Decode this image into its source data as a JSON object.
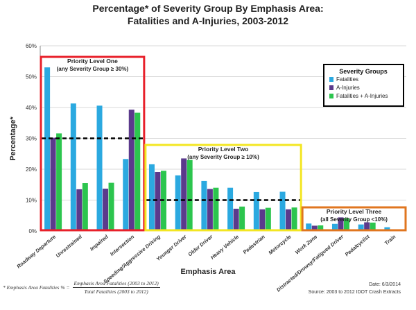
{
  "title_line1": "Percentage* of Severity Group By Emphasis Area:",
  "title_line2": "Fatalities and A-Injuries, 2003-2012",
  "footer": {
    "formula_lhs": "* Emphasis Area Fatalities % =",
    "formula_num": "Emphasis Area Fatalities (2003 to 2012)",
    "formula_den": "Total Fatalities (2003 to 2012)",
    "date": "Date: 6/3/2014",
    "source": "Source:  2003 to 2012 IDOT Crash Extracts"
  },
  "priority_boxes": [
    {
      "title": "Priority Level One",
      "subtitle": "(any Severity Group ≥ 30%)",
      "color": "#e8202a"
    },
    {
      "title": "Priority Level Two",
      "subtitle": "(any Severity Group ≥ 10%)",
      "color": "#f3e622"
    },
    {
      "title": "Priority Level Three",
      "subtitle": "(all Severity Group <10%)",
      "color": "#e0761f"
    }
  ],
  "legend_title": "Severity Groups",
  "chart_data": {
    "type": "bar",
    "xlabel": "Emphasis Area",
    "ylabel": "Percentage*",
    "ylim": [
      0,
      60
    ],
    "yticks": [
      "0%",
      "10%",
      "20%",
      "30%",
      "40%",
      "50%",
      "60%"
    ],
    "grid": true,
    "legend": "top-right",
    "categories": [
      "Roadway Departure",
      "Unrestrained",
      "Impaired",
      "Intersection",
      "Speeding/Aggressive Driving",
      "Younger Driver",
      "Older Driver",
      "Heavy Vehicle",
      "Pedestrian",
      "Motorcycle",
      "Work Zone",
      "Distracted/Drowsy/Fatigued Driver",
      "Pedalcyclist",
      "Train"
    ],
    "series": [
      {
        "name": "Fatalities",
        "color": "#2ba9e0",
        "values": [
          53,
          41.3,
          40.6,
          23.3,
          21.6,
          18,
          16.2,
          14,
          12.6,
          12.7,
          2.4,
          2.3,
          2.1,
          1.2
        ]
      },
      {
        "name": "A-Injuries",
        "color": "#5b3a8c",
        "values": [
          30.2,
          13.5,
          13.7,
          39.3,
          19.1,
          23.5,
          13.6,
          7.2,
          7,
          7,
          1.7,
          4.4,
          2.8,
          0.4
        ]
      },
      {
        "name": "Fatalities + A-Injuries",
        "color": "#2cc54e",
        "values": [
          31.6,
          15.5,
          15.6,
          38.3,
          19.5,
          23,
          14,
          7.9,
          7.5,
          7.6,
          1.8,
          4.2,
          2.7,
          0.5
        ]
      }
    ],
    "thresholds": [
      {
        "value": 30,
        "from_category": 0,
        "to_category": 3
      },
      {
        "value": 10,
        "from_category": 4,
        "to_category": 9
      }
    ]
  }
}
